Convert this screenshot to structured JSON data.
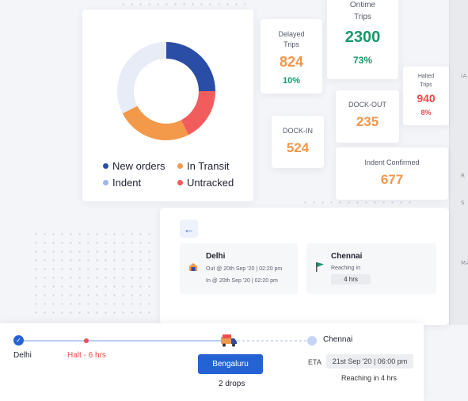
{
  "donut": {
    "segments": [
      {
        "name": "New orders",
        "value": 25,
        "color": "#2a4ea6"
      },
      {
        "name": "Untracked",
        "value": 17.5,
        "color": "#f25c5c"
      },
      {
        "name": "In Transit",
        "value": 25,
        "color": "#f3994a"
      },
      {
        "name": "Indent",
        "value": 32.5,
        "color": "#e8ecf7"
      }
    ],
    "legend": [
      {
        "label": "New orders",
        "color": "#2a4ea6"
      },
      {
        "label": "In Transit",
        "color": "#f3994a"
      },
      {
        "label": "Indent",
        "color": "#9db6ef"
      },
      {
        "label": "Untracked",
        "color": "#f25c5c"
      }
    ]
  },
  "stats": {
    "ontime": {
      "label_line1": "Ontime",
      "label_line2": "Trips",
      "value": "2300",
      "percent": "73%"
    },
    "delayed": {
      "label_line1": "Delayed",
      "label_line2": "Trips",
      "value": "824",
      "percent": "10%"
    },
    "halted": {
      "label_line1": "Halted",
      "label_line2": "Trips",
      "value": "940",
      "percent": "8%"
    },
    "dock_out": {
      "label": "DOCK-OUT",
      "value": "235"
    },
    "dock_in": {
      "label": "DOCK-IN",
      "value": "524"
    },
    "indent_confirmed": {
      "label": "Indent Confirmed",
      "value": "677"
    }
  },
  "trip": {
    "back_icon": "arrow-left-icon",
    "origin": {
      "name": "Delhi",
      "out": "Out @ 20th Sep '20 | 02:20 pm",
      "in": "In @ 20th Sep '20 | 02:20 pm",
      "icon": "warehouse-icon"
    },
    "destination": {
      "name": "Chennai",
      "reaching_label": "Reaching in",
      "reaching_value": "4 hrs",
      "icon": "flag-icon"
    }
  },
  "timeline": {
    "start": "Delhi",
    "halt": "Halt - 6 hrs",
    "current_stop": "Bengaluru",
    "drops": "2 drops",
    "end": "Chennai",
    "eta_label": "ETA",
    "eta_value": "21st Sep '20 | 06:00 pm",
    "reaching": "Reaching in 4 hrs",
    "truck_icon": "truck-icon",
    "check_icon": "check-icon"
  },
  "map": {
    "labels": [
      "IA",
      "R",
      "S",
      "MA"
    ]
  }
}
